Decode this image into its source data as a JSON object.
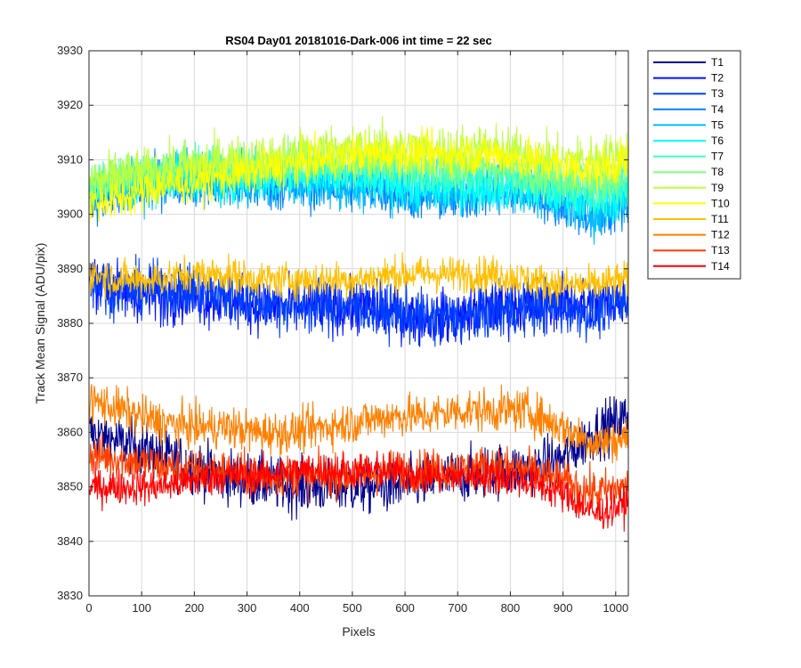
{
  "chart_data": {
    "type": "line",
    "title": "RS04 Day01 20181016-Dark-006 int time = 22 sec",
    "xlabel": "Pixels",
    "ylabel": "Track Mean Signal (ADU/pix)",
    "xlim": [
      0,
      1024
    ],
    "ylim": [
      3830,
      3930
    ],
    "xticks": [
      0,
      100,
      200,
      300,
      400,
      500,
      600,
      700,
      800,
      900,
      1000
    ],
    "yticks": [
      3830,
      3840,
      3850,
      3860,
      3870,
      3880,
      3890,
      3900,
      3910,
      3920,
      3930
    ],
    "grid": true,
    "legend_position": "outside-top-right",
    "x": [
      0,
      64,
      128,
      192,
      256,
      320,
      384,
      448,
      512,
      576,
      640,
      704,
      768,
      832,
      896,
      960,
      1024
    ],
    "series": [
      {
        "name": "T1",
        "color": "#00008f",
        "noise": 4.5,
        "values": [
          3860,
          3858,
          3856,
          3854,
          3852,
          3851,
          3850,
          3850,
          3850,
          3850,
          3851,
          3852,
          3853,
          3853,
          3855,
          3860,
          3863
        ]
      },
      {
        "name": "T2",
        "color": "#0010ff",
        "noise": 4.5,
        "values": [
          3889,
          3886,
          3885,
          3885,
          3884,
          3883,
          3883,
          3883,
          3883,
          3882,
          3881,
          3881,
          3883,
          3883,
          3884,
          3883,
          3885
        ]
      },
      {
        "name": "T3",
        "color": "#0040ff",
        "noise": 4.5,
        "values": [
          3888,
          3886,
          3886,
          3886,
          3885,
          3884,
          3883,
          3883,
          3883,
          3882,
          3881,
          3881,
          3882,
          3883,
          3883,
          3882,
          3884
        ]
      },
      {
        "name": "T4",
        "color": "#0080ff",
        "noise": 4.0,
        "values": [
          3903,
          3904,
          3906,
          3906,
          3905,
          3905,
          3905,
          3905,
          3905,
          3904,
          3903,
          3903,
          3904,
          3904,
          3902,
          3899,
          3902
        ]
      },
      {
        "name": "T5",
        "color": "#00bfff",
        "noise": 4.0,
        "values": [
          3904,
          3905,
          3906,
          3907,
          3906,
          3906,
          3906,
          3906,
          3905,
          3905,
          3904,
          3904,
          3904,
          3904,
          3903,
          3900,
          3903
        ]
      },
      {
        "name": "T6",
        "color": "#00ffff",
        "noise": 4.0,
        "values": [
          3905,
          3906,
          3907,
          3907,
          3907,
          3907,
          3907,
          3907,
          3906,
          3906,
          3905,
          3905,
          3905,
          3905,
          3904,
          3902,
          3904
        ]
      },
      {
        "name": "T7",
        "color": "#40ffbf",
        "noise": 3.5,
        "values": [
          3905,
          3907,
          3908,
          3908,
          3908,
          3908,
          3908,
          3909,
          3908,
          3908,
          3907,
          3907,
          3907,
          3906,
          3905,
          3904,
          3905
        ]
      },
      {
        "name": "T8",
        "color": "#80ff80",
        "noise": 3.5,
        "values": [
          3906,
          3907,
          3908,
          3909,
          3909,
          3909,
          3910,
          3910,
          3910,
          3910,
          3909,
          3909,
          3909,
          3908,
          3907,
          3906,
          3907
        ]
      },
      {
        "name": "T9",
        "color": "#bfff40",
        "noise": 4.0,
        "values": [
          3906,
          3907,
          3908,
          3909,
          3910,
          3910,
          3911,
          3912,
          3912,
          3912,
          3912,
          3912,
          3912,
          3911,
          3910,
          3910,
          3911
        ]
      },
      {
        "name": "T10",
        "color": "#ffff00",
        "noise": 3.5,
        "values": [
          3902,
          3903,
          3905,
          3906,
          3907,
          3908,
          3909,
          3910,
          3911,
          3911,
          3911,
          3911,
          3911,
          3910,
          3909,
          3908,
          3910
        ]
      },
      {
        "name": "T11",
        "color": "#ffbf00",
        "noise": 3.0,
        "values": [
          3889,
          3888,
          3888,
          3889,
          3889,
          3888,
          3888,
          3888,
          3888,
          3889,
          3889,
          3889,
          3889,
          3888,
          3887,
          3887,
          3888
        ]
      },
      {
        "name": "T12",
        "color": "#ff8000",
        "noise": 3.5,
        "values": [
          3866,
          3864,
          3862,
          3861,
          3861,
          3860,
          3860,
          3861,
          3862,
          3863,
          3863,
          3864,
          3864,
          3864,
          3861,
          3858,
          3859
        ]
      },
      {
        "name": "T13",
        "color": "#ff4000",
        "noise": 3.5,
        "values": [
          3856,
          3855,
          3854,
          3853,
          3853,
          3852,
          3852,
          3852,
          3852,
          3853,
          3853,
          3853,
          3854,
          3853,
          3851,
          3849,
          3850
        ]
      },
      {
        "name": "T14",
        "color": "#ff0000",
        "noise": 3.0,
        "values": [
          3850,
          3850,
          3850,
          3851,
          3852,
          3852,
          3853,
          3853,
          3853,
          3853,
          3852,
          3852,
          3852,
          3851,
          3849,
          3845,
          3847
        ]
      }
    ]
  }
}
